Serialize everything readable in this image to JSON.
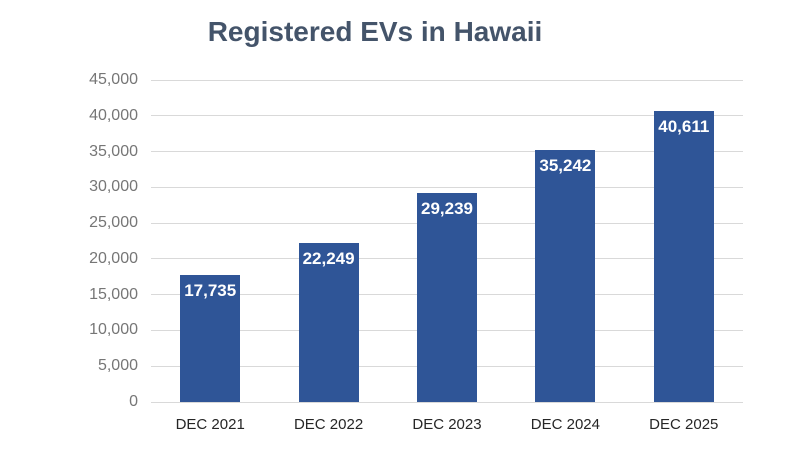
{
  "chart_data": {
    "type": "bar",
    "title": "Registered EVs in Hawaii",
    "categories": [
      "DEC 2021",
      "DEC 2022",
      "DEC 2023",
      "DEC 2024",
      "DEC 2025"
    ],
    "values": [
      17735,
      22249,
      29239,
      35242,
      40611
    ],
    "data_labels": [
      "17,735",
      "22,249",
      "29,239",
      "35,242",
      "40,611"
    ],
    "data_label_position": "inside-end",
    "xlabel": "",
    "ylabel": "",
    "ylim": [
      0,
      45000
    ],
    "ytick_step": 5000,
    "ytick_labels": [
      "0",
      "5,000",
      "10,000",
      "15,000",
      "20,000",
      "25,000",
      "30,000",
      "35,000",
      "40,000",
      "45,000"
    ],
    "grid": "horizontal",
    "legend_position": "none",
    "colors": {
      "bar": "#2F5597",
      "title": "#44546A",
      "gridline": "#D9D9D9",
      "ytick_text": "#767676",
      "xtick_text": "#262626",
      "data_label_text": "#FFFFFF",
      "background": "#FFFFFF"
    }
  }
}
